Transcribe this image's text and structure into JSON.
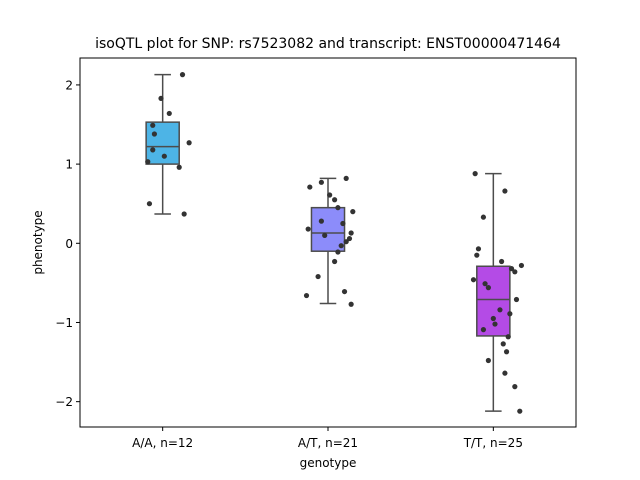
{
  "chart_data": {
    "type": "box",
    "title": "isoQTL plot for SNP: rs7523082 and transcript: ENST00000471464",
    "xlabel": "genotype",
    "ylabel": "phenotype",
    "categories": [
      "A/A, n=12",
      "A/T, n=21",
      "T/T, n=25"
    ],
    "ylim": [
      -2.32,
      2.34
    ],
    "yticks": [
      2,
      1,
      0,
      -1,
      -2
    ],
    "ytick_labels": [
      "2",
      "1",
      "0",
      "−1",
      "−2"
    ],
    "grid": false,
    "colors": [
      "#4db4e6",
      "#8c8cfa",
      "#b44be6"
    ],
    "boxes": [
      {
        "whisker_low": 0.37,
        "q1": 1.0,
        "median": 1.22,
        "q3": 1.53,
        "whisker_high": 2.13
      },
      {
        "whisker_low": -0.76,
        "q1": -0.1,
        "median": 0.13,
        "q3": 0.45,
        "whisker_high": 0.82
      },
      {
        "whisker_low": -2.12,
        "q1": -1.17,
        "median": -0.71,
        "q3": -0.29,
        "whisker_high": 0.88
      }
    ],
    "points": [
      [
        [
          0.12,
          2.13
        ],
        [
          -0.01,
          1.83
        ],
        [
          0.04,
          1.64
        ],
        [
          -0.06,
          1.49
        ],
        [
          -0.05,
          1.38
        ],
        [
          0.16,
          1.27
        ],
        [
          -0.06,
          1.18
        ],
        [
          0.01,
          1.1
        ],
        [
          -0.09,
          1.03
        ],
        [
          0.1,
          0.96
        ],
        [
          -0.08,
          0.5
        ],
        [
          0.13,
          0.37
        ]
      ],
      [
        [
          -0.04,
          0.77
        ],
        [
          0.11,
          0.82
        ],
        [
          -0.11,
          0.71
        ],
        [
          0.01,
          0.61
        ],
        [
          0.04,
          0.55
        ],
        [
          0.06,
          0.45
        ],
        [
          0.15,
          0.4
        ],
        [
          -0.04,
          0.28
        ],
        [
          0.09,
          0.25
        ],
        [
          -0.12,
          0.18
        ],
        [
          0.14,
          0.13
        ],
        [
          -0.02,
          0.1
        ],
        [
          0.13,
          0.06
        ],
        [
          0.11,
          0.02
        ],
        [
          0.08,
          -0.03
        ],
        [
          0.06,
          -0.11
        ],
        [
          0.04,
          -0.23
        ],
        [
          -0.06,
          -0.42
        ],
        [
          0.1,
          -0.61
        ],
        [
          -0.13,
          -0.66
        ],
        [
          0.14,
          -0.77
        ]
      ],
      [
        [
          -0.11,
          0.88
        ],
        [
          0.07,
          0.66
        ],
        [
          -0.06,
          0.33
        ],
        [
          -0.09,
          -0.07
        ],
        [
          -0.1,
          -0.15
        ],
        [
          0.05,
          -0.23
        ],
        [
          0.17,
          -0.28
        ],
        [
          0.11,
          -0.32
        ],
        [
          0.13,
          -0.36
        ],
        [
          -0.12,
          -0.46
        ],
        [
          -0.05,
          -0.51
        ],
        [
          -0.03,
          -0.56
        ],
        [
          0.14,
          -0.71
        ],
        [
          0.04,
          -0.84
        ],
        [
          0.1,
          -0.89
        ],
        [
          0.0,
          -0.95
        ],
        [
          0.01,
          -1.02
        ],
        [
          -0.06,
          -1.09
        ],
        [
          0.09,
          -1.18
        ],
        [
          0.06,
          -1.27
        ],
        [
          0.08,
          -1.37
        ],
        [
          -0.03,
          -1.48
        ],
        [
          0.07,
          -1.64
        ],
        [
          0.13,
          -1.81
        ],
        [
          0.16,
          -2.12
        ]
      ]
    ]
  }
}
